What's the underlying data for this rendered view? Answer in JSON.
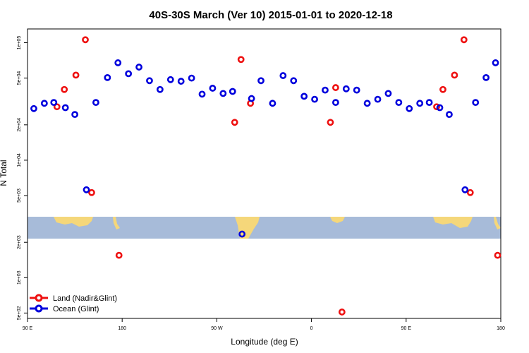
{
  "chart_data": {
    "type": "scatter",
    "title": "40S-30S March (Ver 10)   2015-01-01 to 2020-12-18",
    "xlabel": "Longitude (deg E)",
    "ylabel": "N Total",
    "y_scale": "log",
    "xlim": [
      90,
      540
    ],
    "ylim": [
      450,
      131000
    ],
    "x_ticks": [
      {
        "value": 90,
        "label": "90 E"
      },
      {
        "value": 180,
        "label": "180"
      },
      {
        "value": 270,
        "label": "90 W"
      },
      {
        "value": 360,
        "label": "0"
      },
      {
        "value": 450,
        "label": "90 E"
      },
      {
        "value": 540,
        "label": "180"
      }
    ],
    "y_ticks": [
      {
        "value": 100000,
        "label": "1e+05"
      },
      {
        "value": 50000,
        "label": "5e+04"
      },
      {
        "value": 20000,
        "label": "2e+04"
      },
      {
        "value": 10000,
        "label": "1e+04"
      },
      {
        "value": 5000,
        "label": "5e+03"
      },
      {
        "value": 2000,
        "label": "2e+03"
      },
      {
        "value": 1000,
        "label": "1e+03"
      },
      {
        "value": 500,
        "label": "5e+02"
      }
    ],
    "map_strip": {
      "y_low": 2150,
      "y_high": 3300,
      "ocean_color": "#a7bbd9",
      "land_color": "#f5d77a"
    },
    "series": [
      {
        "name": "Land (Nadir&Glint)",
        "color": "#ee1111",
        "points": [
          {
            "x": 118,
            "y": 28500
          },
          {
            "x": 125,
            "y": 40000
          },
          {
            "x": 136,
            "y": 53000
          },
          {
            "x": 145,
            "y": 106000
          },
          {
            "x": 151,
            "y": 5300
          },
          {
            "x": 177,
            "y": 1550
          },
          {
            "x": 287,
            "y": 21000
          },
          {
            "x": 293,
            "y": 72000
          },
          {
            "x": 302,
            "y": 30500
          },
          {
            "x": 378,
            "y": 21000
          },
          {
            "x": 383,
            "y": 41500
          },
          {
            "x": 389,
            "y": 510
          },
          {
            "x": 479,
            "y": 28500
          },
          {
            "x": 485,
            "y": 40000
          },
          {
            "x": 496,
            "y": 53000
          },
          {
            "x": 505,
            "y": 106000
          },
          {
            "x": 511,
            "y": 5300
          },
          {
            "x": 537,
            "y": 1550
          }
        ]
      },
      {
        "name": "Ocean (Glint)",
        "color": "#0000dd",
        "points": [
          {
            "x": 96,
            "y": 27500
          },
          {
            "x": 106,
            "y": 30500
          },
          {
            "x": 115,
            "y": 31000
          },
          {
            "x": 126,
            "y": 28000
          },
          {
            "x": 135,
            "y": 24500
          },
          {
            "x": 146,
            "y": 5600
          },
          {
            "x": 155,
            "y": 31000
          },
          {
            "x": 166,
            "y": 50500
          },
          {
            "x": 176,
            "y": 67500
          },
          {
            "x": 186,
            "y": 54500
          },
          {
            "x": 196,
            "y": 62000
          },
          {
            "x": 206,
            "y": 47500
          },
          {
            "x": 216,
            "y": 40000
          },
          {
            "x": 226,
            "y": 48500
          },
          {
            "x": 236,
            "y": 47000
          },
          {
            "x": 246,
            "y": 50000
          },
          {
            "x": 256,
            "y": 36500
          },
          {
            "x": 266,
            "y": 41000
          },
          {
            "x": 276,
            "y": 37000
          },
          {
            "x": 285,
            "y": 38500
          },
          {
            "x": 294,
            "y": 2350
          },
          {
            "x": 303,
            "y": 33500
          },
          {
            "x": 312,
            "y": 47500
          },
          {
            "x": 323,
            "y": 30500
          },
          {
            "x": 333,
            "y": 52500
          },
          {
            "x": 343,
            "y": 47500
          },
          {
            "x": 353,
            "y": 35000
          },
          {
            "x": 363,
            "y": 33000
          },
          {
            "x": 373,
            "y": 39500
          },
          {
            "x": 383,
            "y": 31000
          },
          {
            "x": 393,
            "y": 40500
          },
          {
            "x": 403,
            "y": 39500
          },
          {
            "x": 413,
            "y": 30500
          },
          {
            "x": 423,
            "y": 33000
          },
          {
            "x": 433,
            "y": 37000
          },
          {
            "x": 443,
            "y": 31000
          },
          {
            "x": 453,
            "y": 27500
          },
          {
            "x": 463,
            "y": 30500
          },
          {
            "x": 472,
            "y": 31000
          },
          {
            "x": 482,
            "y": 28000
          },
          {
            "x": 491,
            "y": 24500
          },
          {
            "x": 506,
            "y": 5600
          },
          {
            "x": 516,
            "y": 31000
          },
          {
            "x": 526,
            "y": 50500
          },
          {
            "x": 535,
            "y": 67500
          }
        ]
      }
    ],
    "legend": {
      "position": "bottom-left"
    }
  }
}
